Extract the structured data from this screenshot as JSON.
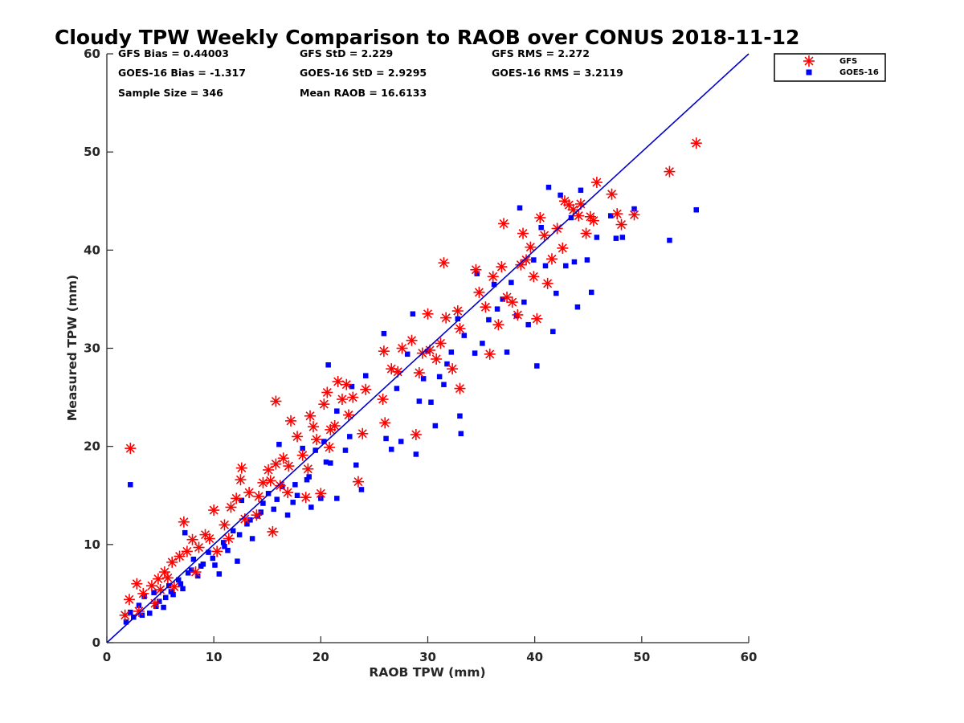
{
  "chart_data": {
    "type": "scatter",
    "title": "Cloudy TPW Weekly Comparison to RAOB over CONUS 2018-11-12",
    "xlabel": "RAOB TPW (mm)",
    "ylabel": "Measured TPW (mm)",
    "xlim": [
      0,
      60
    ],
    "ylim": [
      0,
      60
    ],
    "xticks": [
      "0",
      "10",
      "20",
      "30",
      "40",
      "50",
      "60"
    ],
    "yticks": [
      "0",
      "10",
      "20",
      "30",
      "40",
      "50",
      "60"
    ],
    "grid": false,
    "legend_position": "top-right",
    "stats": {
      "gfs_bias": "GFS Bias = 0.44003",
      "gfs_std": "GFS StD = 2.229",
      "gfs_rms": "GFS RMS = 2.272",
      "goes_bias": "GOES-16 Bias = -1.317",
      "goes_std": "GOES-16 StD = 2.9295",
      "goes_rms": "GOES-16 RMS = 3.2119",
      "sample_size": "Sample Size = 346",
      "mean_raob": "Mean RAOB = 16.6133"
    },
    "reference_line": {
      "from": [
        0,
        0
      ],
      "to": [
        60,
        60
      ],
      "color": "#0000cc"
    },
    "series": [
      {
        "name": "GFS",
        "marker": "asterisk",
        "color": "#ff0000",
        "points": [
          [
            2.2,
            19.8
          ],
          [
            1.7,
            2.8
          ],
          [
            2.1,
            4.4
          ],
          [
            2.8,
            6.0
          ],
          [
            3.4,
            5.0
          ],
          [
            4.2,
            5.8
          ],
          [
            4.8,
            6.5
          ],
          [
            5.4,
            7.2
          ],
          [
            6.1,
            8.2
          ],
          [
            6.8,
            8.8
          ],
          [
            7.2,
            12.3
          ],
          [
            7.5,
            9.3
          ],
          [
            8.0,
            10.5
          ],
          [
            8.6,
            9.7
          ],
          [
            9.2,
            11.0
          ],
          [
            10.0,
            13.5
          ],
          [
            10.3,
            9.3
          ],
          [
            11.0,
            12.0
          ],
          [
            11.6,
            13.8
          ],
          [
            12.1,
            14.7
          ],
          [
            12.6,
            17.8
          ],
          [
            12.5,
            16.6
          ],
          [
            13.3,
            15.3
          ],
          [
            14.0,
            13.0
          ],
          [
            14.6,
            16.3
          ],
          [
            15.1,
            17.6
          ],
          [
            15.5,
            11.3
          ],
          [
            15.8,
            18.2
          ],
          [
            15.8,
            24.6
          ],
          [
            16.5,
            18.8
          ],
          [
            16.9,
            15.3
          ],
          [
            17.2,
            22.6
          ],
          [
            17.8,
            21.0
          ],
          [
            18.3,
            19.1
          ],
          [
            18.6,
            14.8
          ],
          [
            19.0,
            23.1
          ],
          [
            19.3,
            22.0
          ],
          [
            20.0,
            15.2
          ],
          [
            20.3,
            24.3
          ],
          [
            20.6,
            25.5
          ],
          [
            20.8,
            19.9
          ],
          [
            21.3,
            22.1
          ],
          [
            21.6,
            26.6
          ],
          [
            22.0,
            24.8
          ],
          [
            22.4,
            26.3
          ],
          [
            22.6,
            23.2
          ],
          [
            23.0,
            25.0
          ],
          [
            23.5,
            16.4
          ],
          [
            23.9,
            21.3
          ],
          [
            24.2,
            25.8
          ],
          [
            25.9,
            29.7
          ],
          [
            25.8,
            24.8
          ],
          [
            26.0,
            22.4
          ],
          [
            26.6,
            27.9
          ],
          [
            27.2,
            27.6
          ],
          [
            27.6,
            30.0
          ],
          [
            28.5,
            30.8
          ],
          [
            28.9,
            21.2
          ],
          [
            29.2,
            27.5
          ],
          [
            29.5,
            29.5
          ],
          [
            30.0,
            33.5
          ],
          [
            30.2,
            29.8
          ],
          [
            30.8,
            28.9
          ],
          [
            31.2,
            30.5
          ],
          [
            31.5,
            38.7
          ],
          [
            31.7,
            33.1
          ],
          [
            32.3,
            27.9
          ],
          [
            32.8,
            33.8
          ],
          [
            33.0,
            25.9
          ],
          [
            33.0,
            32.0
          ],
          [
            34.5,
            38.0
          ],
          [
            34.8,
            35.7
          ],
          [
            35.4,
            34.2
          ],
          [
            35.8,
            29.4
          ],
          [
            36.1,
            37.3
          ],
          [
            36.6,
            32.4
          ],
          [
            36.9,
            38.3
          ],
          [
            37.1,
            42.7
          ],
          [
            37.4,
            35.2
          ],
          [
            37.9,
            34.7
          ],
          [
            38.4,
            33.4
          ],
          [
            38.7,
            38.5
          ],
          [
            38.9,
            41.7
          ],
          [
            39.2,
            39.0
          ],
          [
            39.6,
            40.3
          ],
          [
            39.9,
            37.3
          ],
          [
            40.2,
            33.0
          ],
          [
            40.5,
            43.3
          ],
          [
            40.9,
            41.5
          ],
          [
            41.2,
            36.6
          ],
          [
            41.6,
            39.1
          ],
          [
            42.1,
            42.2
          ],
          [
            42.6,
            40.2
          ],
          [
            42.8,
            45.0
          ],
          [
            43.2,
            44.6
          ],
          [
            43.6,
            44.1
          ],
          [
            44.1,
            43.5
          ],
          [
            44.3,
            44.7
          ],
          [
            44.8,
            41.7
          ],
          [
            45.2,
            43.4
          ],
          [
            45.5,
            43.0
          ],
          [
            45.8,
            46.9
          ],
          [
            47.2,
            45.7
          ],
          [
            47.7,
            43.7
          ],
          [
            48.1,
            42.6
          ],
          [
            49.3,
            43.6
          ],
          [
            52.6,
            48.0
          ],
          [
            55.1,
            50.9
          ],
          [
            3.0,
            3.2
          ],
          [
            4.5,
            4.0
          ],
          [
            5.0,
            5.4
          ],
          [
            5.7,
            6.6
          ],
          [
            6.3,
            5.7
          ],
          [
            8.3,
            7.2
          ],
          [
            9.6,
            10.6
          ],
          [
            11.4,
            10.6
          ],
          [
            12.9,
            12.6
          ],
          [
            14.2,
            14.9
          ],
          [
            15.3,
            16.5
          ],
          [
            16.2,
            16.0
          ],
          [
            17.0,
            18.0
          ],
          [
            18.8,
            17.7
          ],
          [
            19.6,
            20.7
          ],
          [
            20.9,
            21.7
          ]
        ]
      },
      {
        "name": "GOES-16",
        "marker": "square",
        "color": "#0000ff",
        "points": [
          [
            2.2,
            16.1
          ],
          [
            1.8,
            2.1
          ],
          [
            2.2,
            3.1
          ],
          [
            2.5,
            2.6
          ],
          [
            3.0,
            3.8
          ],
          [
            3.5,
            4.7
          ],
          [
            4.0,
            3.0
          ],
          [
            4.4,
            5.1
          ],
          [
            4.9,
            4.2
          ],
          [
            5.3,
            3.6
          ],
          [
            5.8,
            5.8
          ],
          [
            6.2,
            4.9
          ],
          [
            6.7,
            6.4
          ],
          [
            7.1,
            5.5
          ],
          [
            7.3,
            11.2
          ],
          [
            7.6,
            7.1
          ],
          [
            8.1,
            8.5
          ],
          [
            8.5,
            6.8
          ],
          [
            9.0,
            8.0
          ],
          [
            9.5,
            9.2
          ],
          [
            10.1,
            7.9
          ],
          [
            10.5,
            7.0
          ],
          [
            10.9,
            10.2
          ],
          [
            11.3,
            9.4
          ],
          [
            11.8,
            11.4
          ],
          [
            12.2,
            8.3
          ],
          [
            12.6,
            14.5
          ],
          [
            13.1,
            12.1
          ],
          [
            13.6,
            10.6
          ],
          [
            14.1,
            12.9
          ],
          [
            14.6,
            14.2
          ],
          [
            15.1,
            15.2
          ],
          [
            15.6,
            13.6
          ],
          [
            16.1,
            20.2
          ],
          [
            16.4,
            15.9
          ],
          [
            16.9,
            13.0
          ],
          [
            17.4,
            14.3
          ],
          [
            17.8,
            15.0
          ],
          [
            18.3,
            19.8
          ],
          [
            18.7,
            16.6
          ],
          [
            19.1,
            13.8
          ],
          [
            19.5,
            19.6
          ],
          [
            20.0,
            14.7
          ],
          [
            20.3,
            20.5
          ],
          [
            20.7,
            28.3
          ],
          [
            20.9,
            18.3
          ],
          [
            21.5,
            23.6
          ],
          [
            21.5,
            14.7
          ],
          [
            22.3,
            19.6
          ],
          [
            22.7,
            21.0
          ],
          [
            22.9,
            26.1
          ],
          [
            23.3,
            18.1
          ],
          [
            23.8,
            15.6
          ],
          [
            24.2,
            27.2
          ],
          [
            25.9,
            31.5
          ],
          [
            26.1,
            20.8
          ],
          [
            26.6,
            19.7
          ],
          [
            27.1,
            25.9
          ],
          [
            27.5,
            20.5
          ],
          [
            28.1,
            29.4
          ],
          [
            28.6,
            33.5
          ],
          [
            28.9,
            19.2
          ],
          [
            29.2,
            24.6
          ],
          [
            29.6,
            26.9
          ],
          [
            30.0,
            29.7
          ],
          [
            30.3,
            24.5
          ],
          [
            30.7,
            22.1
          ],
          [
            31.1,
            27.1
          ],
          [
            31.5,
            26.3
          ],
          [
            31.8,
            28.4
          ],
          [
            32.2,
            29.6
          ],
          [
            32.8,
            33.0
          ],
          [
            33.0,
            23.1
          ],
          [
            33.1,
            21.3
          ],
          [
            33.4,
            31.3
          ],
          [
            34.4,
            29.5
          ],
          [
            34.6,
            37.6
          ],
          [
            35.1,
            30.5
          ],
          [
            35.7,
            32.9
          ],
          [
            36.2,
            36.5
          ],
          [
            36.5,
            34.0
          ],
          [
            37.0,
            35.0
          ],
          [
            37.4,
            29.6
          ],
          [
            37.8,
            36.7
          ],
          [
            38.3,
            33.3
          ],
          [
            38.6,
            44.3
          ],
          [
            39.0,
            34.7
          ],
          [
            39.4,
            32.4
          ],
          [
            39.9,
            39.0
          ],
          [
            40.2,
            28.2
          ],
          [
            40.6,
            42.3
          ],
          [
            41.0,
            38.4
          ],
          [
            41.3,
            46.4
          ],
          [
            41.7,
            31.7
          ],
          [
            42.0,
            35.6
          ],
          [
            42.4,
            45.6
          ],
          [
            42.9,
            38.4
          ],
          [
            43.4,
            43.3
          ],
          [
            43.7,
            38.8
          ],
          [
            44.0,
            34.2
          ],
          [
            44.3,
            46.1
          ],
          [
            44.9,
            39.0
          ],
          [
            45.3,
            35.7
          ],
          [
            45.8,
            41.3
          ],
          [
            47.1,
            43.5
          ],
          [
            47.6,
            41.2
          ],
          [
            48.2,
            41.3
          ],
          [
            49.3,
            44.2
          ],
          [
            52.6,
            41.0
          ],
          [
            55.1,
            44.1
          ],
          [
            3.3,
            2.8
          ],
          [
            4.6,
            3.7
          ],
          [
            5.5,
            4.6
          ],
          [
            6.0,
            5.2
          ],
          [
            6.9,
            6.0
          ],
          [
            7.9,
            7.4
          ],
          [
            8.8,
            7.8
          ],
          [
            9.9,
            8.6
          ],
          [
            11.0,
            9.8
          ],
          [
            12.4,
            11.0
          ],
          [
            13.4,
            12.5
          ],
          [
            14.4,
            13.3
          ],
          [
            15.9,
            14.6
          ],
          [
            17.6,
            16.1
          ],
          [
            18.9,
            16.9
          ],
          [
            20.5,
            18.4
          ]
        ]
      }
    ]
  }
}
